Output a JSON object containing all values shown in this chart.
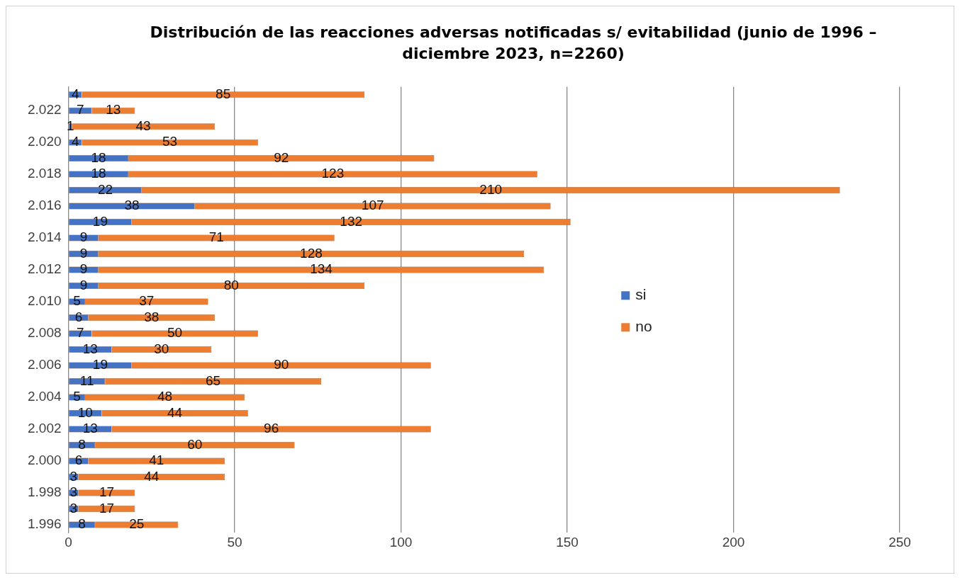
{
  "chart_data": {
    "type": "bar",
    "orientation": "horizontal",
    "stacked": true,
    "title": "Distribución de las reacciones adversas notificadas s/ evitabilidad  (junio de 1996 – diciembre 2023,  n=2260)",
    "categories": [
      null,
      "2.022",
      null,
      "2.020",
      null,
      "2.018",
      null,
      "2.016",
      null,
      "2.014",
      null,
      "2.012",
      null,
      "2.010",
      null,
      "2.008",
      null,
      "2.006",
      null,
      "2.004",
      null,
      "2.002",
      null,
      "2.000",
      null,
      "1.998",
      null,
      "1.996"
    ],
    "series": [
      {
        "name": "si",
        "color": "#4472c4",
        "values": [
          4,
          7,
          1,
          4,
          18,
          18,
          22,
          38,
          19,
          9,
          9,
          9,
          9,
          5,
          6,
          7,
          13,
          19,
          11,
          5,
          10,
          13,
          8,
          6,
          3,
          3,
          3,
          8
        ]
      },
      {
        "name": "no",
        "color": "#ed7d31",
        "values": [
          85,
          13,
          43,
          53,
          92,
          123,
          210,
          107,
          132,
          71,
          128,
          134,
          80,
          37,
          38,
          50,
          30,
          90,
          65,
          48,
          44,
          96,
          60,
          41,
          44,
          17,
          17,
          25
        ]
      }
    ],
    "xlim": [
      0,
      250
    ],
    "xticks": [
      0,
      50,
      100,
      150,
      200,
      250
    ],
    "grid": "x",
    "legend": "right",
    "data_labels": true
  }
}
